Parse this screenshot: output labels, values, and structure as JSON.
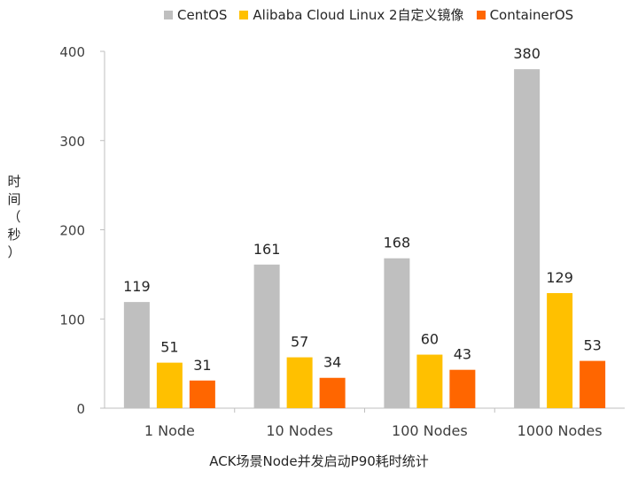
{
  "chart_data": {
    "type": "bar",
    "title": "",
    "xlabel": "ACK场景Node并发启动P90耗时统计",
    "ylabel": "时间（秒）",
    "ylim": [
      0,
      400
    ],
    "yticks": [
      0,
      100,
      200,
      300,
      400
    ],
    "categories": [
      "1 Node",
      "10 Nodes",
      "100 Nodes",
      "1000 Nodes"
    ],
    "series": [
      {
        "name": "CentOS",
        "color": "#BFBFBF",
        "values": [
          119,
          161,
          168,
          380
        ]
      },
      {
        "name": "Alibaba Cloud Linux 2自定义镜像",
        "color": "#FFC000",
        "values": [
          51,
          57,
          60,
          129
        ]
      },
      {
        "name": "ContainerOS",
        "color": "#FF6600",
        "values": [
          31,
          34,
          43,
          53
        ]
      }
    ],
    "legend_position": "top",
    "grid": false,
    "data_labels": true
  }
}
